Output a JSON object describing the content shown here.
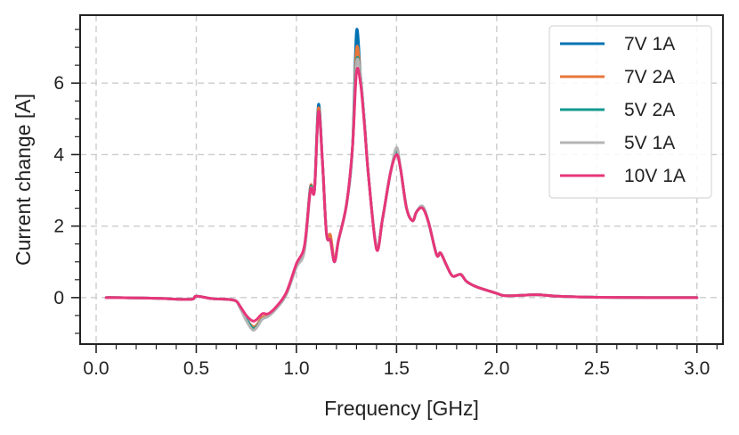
{
  "chart_data": {
    "type": "line",
    "title": "",
    "xlabel": "Frequency [GHz]",
    "ylabel": "Current change [A]",
    "xlim": [
      -0.08,
      3.13
    ],
    "ylim": [
      -1.3,
      7.9
    ],
    "xticks": [
      0.0,
      0.5,
      1.0,
      1.5,
      2.0,
      2.5,
      3.0
    ],
    "xtick_labels": [
      "0.0",
      "0.5",
      "1.0",
      "1.5",
      "2.0",
      "2.5",
      "3.0"
    ],
    "yticks": [
      0,
      2,
      4,
      6
    ],
    "ytick_labels": [
      "0",
      "2",
      "4",
      "6"
    ],
    "grid": true,
    "legend_position": "top-right",
    "series": [
      {
        "name": "7V 1A",
        "color": "#0072b2",
        "peak_scale": 1.18,
        "dip_scale": 1.0,
        "noise": 1.0,
        "points": [
          [
            0.05,
            0.0
          ],
          [
            0.1,
            0.0
          ],
          [
            0.3,
            -0.02
          ],
          [
            0.47,
            -0.05
          ],
          [
            0.5,
            0.04
          ],
          [
            0.58,
            -0.03
          ],
          [
            0.66,
            -0.05
          ],
          [
            0.7,
            -0.1
          ],
          [
            0.72,
            -0.3
          ],
          [
            0.75,
            -0.6
          ],
          [
            0.78,
            -0.8
          ],
          [
            0.8,
            -0.78
          ],
          [
            0.83,
            -0.55
          ],
          [
            0.86,
            -0.5
          ],
          [
            0.9,
            -0.3
          ],
          [
            0.95,
            0.1
          ],
          [
            1.0,
            0.9
          ],
          [
            1.04,
            1.4
          ],
          [
            1.07,
            3.1
          ],
          [
            1.09,
            3.0
          ],
          [
            1.11,
            5.4
          ],
          [
            1.13,
            3.8
          ],
          [
            1.15,
            1.8
          ],
          [
            1.17,
            1.6
          ],
          [
            1.19,
            1.0
          ],
          [
            1.21,
            1.6
          ],
          [
            1.25,
            2.6
          ],
          [
            1.28,
            4.2
          ],
          [
            1.3,
            7.45
          ],
          [
            1.32,
            6.2
          ],
          [
            1.34,
            4.9
          ],
          [
            1.36,
            3.4
          ],
          [
            1.4,
            1.4
          ],
          [
            1.43,
            2.2
          ],
          [
            1.47,
            3.5
          ],
          [
            1.5,
            4.05
          ],
          [
            1.52,
            3.6
          ],
          [
            1.55,
            2.5
          ],
          [
            1.58,
            2.15
          ],
          [
            1.6,
            2.4
          ],
          [
            1.63,
            2.55
          ],
          [
            1.66,
            2.1
          ],
          [
            1.7,
            1.2
          ],
          [
            1.72,
            1.25
          ],
          [
            1.75,
            0.9
          ],
          [
            1.78,
            0.6
          ],
          [
            1.82,
            0.65
          ],
          [
            1.85,
            0.45
          ],
          [
            1.9,
            0.3
          ],
          [
            2.0,
            0.12
          ],
          [
            2.05,
            0.05
          ],
          [
            2.2,
            0.08
          ],
          [
            2.3,
            0.04
          ],
          [
            2.5,
            0.01
          ],
          [
            2.75,
            0.0
          ],
          [
            3.0,
            0.0
          ]
        ]
      },
      {
        "name": "7V 2A",
        "color": "#e8773a",
        "peak_scale": 1.1,
        "dip_scale": 0.85,
        "noise": 0.9,
        "points": [
          [
            0.05,
            0.0
          ],
          [
            0.1,
            0.0
          ],
          [
            0.3,
            -0.02
          ],
          [
            0.47,
            -0.05
          ],
          [
            0.5,
            0.04
          ],
          [
            0.58,
            -0.03
          ],
          [
            0.66,
            -0.05
          ],
          [
            0.7,
            -0.1
          ],
          [
            0.72,
            -0.3
          ],
          [
            0.75,
            -0.6
          ],
          [
            0.78,
            -0.8
          ],
          [
            0.8,
            -0.78
          ],
          [
            0.83,
            -0.55
          ],
          [
            0.86,
            -0.5
          ],
          [
            0.9,
            -0.3
          ],
          [
            0.95,
            0.1
          ],
          [
            1.0,
            0.9
          ],
          [
            1.04,
            1.4
          ],
          [
            1.07,
            3.1
          ],
          [
            1.09,
            3.0
          ],
          [
            1.11,
            5.3
          ],
          [
            1.13,
            3.8
          ],
          [
            1.15,
            1.8
          ],
          [
            1.17,
            1.75
          ],
          [
            1.19,
            1.05
          ],
          [
            1.21,
            1.6
          ],
          [
            1.25,
            2.6
          ],
          [
            1.28,
            4.2
          ],
          [
            1.3,
            6.95
          ],
          [
            1.32,
            6.2
          ],
          [
            1.34,
            4.9
          ],
          [
            1.36,
            3.4
          ],
          [
            1.4,
            1.4
          ],
          [
            1.43,
            2.2
          ],
          [
            1.47,
            3.5
          ],
          [
            1.5,
            4.0
          ],
          [
            1.52,
            3.6
          ],
          [
            1.55,
            2.5
          ],
          [
            1.58,
            2.15
          ],
          [
            1.6,
            2.4
          ],
          [
            1.63,
            2.55
          ],
          [
            1.66,
            2.1
          ],
          [
            1.7,
            1.2
          ],
          [
            1.72,
            1.25
          ],
          [
            1.75,
            0.9
          ],
          [
            1.78,
            0.6
          ],
          [
            1.82,
            0.65
          ],
          [
            1.85,
            0.45
          ],
          [
            1.9,
            0.3
          ],
          [
            2.0,
            0.12
          ],
          [
            2.05,
            0.05
          ],
          [
            2.2,
            0.08
          ],
          [
            2.3,
            0.04
          ],
          [
            2.5,
            0.01
          ],
          [
            2.75,
            0.0
          ],
          [
            3.0,
            0.0
          ]
        ]
      },
      {
        "name": "5V 2A",
        "color": "#139a8f",
        "peak_scale": 1.05,
        "dip_scale": 1.05,
        "noise": 1.0,
        "points": [
          [
            0.05,
            0.0
          ],
          [
            0.1,
            0.0
          ],
          [
            0.3,
            -0.02
          ],
          [
            0.47,
            -0.05
          ],
          [
            0.5,
            0.04
          ],
          [
            0.58,
            -0.03
          ],
          [
            0.66,
            -0.05
          ],
          [
            0.7,
            -0.1
          ],
          [
            0.72,
            -0.3
          ],
          [
            0.75,
            -0.6
          ],
          [
            0.78,
            -0.85
          ],
          [
            0.8,
            -0.82
          ],
          [
            0.83,
            -0.6
          ],
          [
            0.86,
            -0.52
          ],
          [
            0.9,
            -0.3
          ],
          [
            0.95,
            0.1
          ],
          [
            1.0,
            0.88
          ],
          [
            1.04,
            1.35
          ],
          [
            1.07,
            3.05
          ],
          [
            1.09,
            3.0
          ],
          [
            1.11,
            5.2
          ],
          [
            1.13,
            3.8
          ],
          [
            1.15,
            1.8
          ],
          [
            1.17,
            1.6
          ],
          [
            1.19,
            1.0
          ],
          [
            1.21,
            1.6
          ],
          [
            1.25,
            2.6
          ],
          [
            1.28,
            4.2
          ],
          [
            1.3,
            6.6
          ],
          [
            1.32,
            6.2
          ],
          [
            1.34,
            4.9
          ],
          [
            1.36,
            3.4
          ],
          [
            1.4,
            1.4
          ],
          [
            1.43,
            2.2
          ],
          [
            1.47,
            3.5
          ],
          [
            1.5,
            4.1
          ],
          [
            1.52,
            3.6
          ],
          [
            1.55,
            2.5
          ],
          [
            1.58,
            2.15
          ],
          [
            1.6,
            2.4
          ],
          [
            1.63,
            2.55
          ],
          [
            1.66,
            2.1
          ],
          [
            1.7,
            1.2
          ],
          [
            1.72,
            1.25
          ],
          [
            1.75,
            0.9
          ],
          [
            1.78,
            0.6
          ],
          [
            1.82,
            0.65
          ],
          [
            1.85,
            0.45
          ],
          [
            1.9,
            0.3
          ],
          [
            2.0,
            0.12
          ],
          [
            2.05,
            0.05
          ],
          [
            2.2,
            0.08
          ],
          [
            2.3,
            0.04
          ],
          [
            2.5,
            0.01
          ],
          [
            2.75,
            0.0
          ],
          [
            3.0,
            0.0
          ]
        ]
      },
      {
        "name": "5V 1A",
        "color": "#b4b4b4",
        "peak_scale": 1.05,
        "dip_scale": 1.15,
        "noise": 1.1,
        "points": [
          [
            0.05,
            0.0
          ],
          [
            0.1,
            0.0
          ],
          [
            0.3,
            -0.02
          ],
          [
            0.47,
            -0.05
          ],
          [
            0.5,
            0.04
          ],
          [
            0.58,
            -0.03
          ],
          [
            0.66,
            -0.05
          ],
          [
            0.7,
            -0.1
          ],
          [
            0.72,
            -0.3
          ],
          [
            0.75,
            -0.65
          ],
          [
            0.78,
            -0.9
          ],
          [
            0.8,
            -0.85
          ],
          [
            0.83,
            -0.6
          ],
          [
            0.86,
            -0.52
          ],
          [
            0.9,
            -0.3
          ],
          [
            0.95,
            0.1
          ],
          [
            1.0,
            0.85
          ],
          [
            1.04,
            1.3
          ],
          [
            1.07,
            3.0
          ],
          [
            1.09,
            3.0
          ],
          [
            1.11,
            5.1
          ],
          [
            1.13,
            3.8
          ],
          [
            1.15,
            1.8
          ],
          [
            1.17,
            1.6
          ],
          [
            1.19,
            1.0
          ],
          [
            1.21,
            1.6
          ],
          [
            1.25,
            2.6
          ],
          [
            1.28,
            4.2
          ],
          [
            1.3,
            6.55
          ],
          [
            1.32,
            6.2
          ],
          [
            1.34,
            4.9
          ],
          [
            1.36,
            3.4
          ],
          [
            1.4,
            1.4
          ],
          [
            1.43,
            2.2
          ],
          [
            1.47,
            3.5
          ],
          [
            1.5,
            4.2
          ],
          [
            1.52,
            3.6
          ],
          [
            1.55,
            2.5
          ],
          [
            1.58,
            2.15
          ],
          [
            1.6,
            2.4
          ],
          [
            1.63,
            2.55
          ],
          [
            1.66,
            2.1
          ],
          [
            1.7,
            1.2
          ],
          [
            1.72,
            1.25
          ],
          [
            1.75,
            0.9
          ],
          [
            1.78,
            0.6
          ],
          [
            1.82,
            0.65
          ],
          [
            1.85,
            0.45
          ],
          [
            1.9,
            0.3
          ],
          [
            2.0,
            0.12
          ],
          [
            2.05,
            0.05
          ],
          [
            2.2,
            0.08
          ],
          [
            2.3,
            0.04
          ],
          [
            2.5,
            0.01
          ],
          [
            2.75,
            0.0
          ],
          [
            3.0,
            0.0
          ]
        ]
      },
      {
        "name": "10V 1A",
        "color": "#e8357a",
        "peak_scale": 1.0,
        "dip_scale": 0.75,
        "noise": 0.8,
        "points": [
          [
            0.05,
            0.0
          ],
          [
            0.1,
            0.0
          ],
          [
            0.3,
            -0.02
          ],
          [
            0.47,
            -0.05
          ],
          [
            0.5,
            0.04
          ],
          [
            0.58,
            -0.03
          ],
          [
            0.66,
            -0.05
          ],
          [
            0.7,
            -0.1
          ],
          [
            0.72,
            -0.25
          ],
          [
            0.75,
            -0.5
          ],
          [
            0.78,
            -0.65
          ],
          [
            0.8,
            -0.62
          ],
          [
            0.83,
            -0.45
          ],
          [
            0.86,
            -0.45
          ],
          [
            0.9,
            -0.25
          ],
          [
            0.95,
            0.15
          ],
          [
            1.0,
            0.95
          ],
          [
            1.04,
            1.45
          ],
          [
            1.07,
            3.0
          ],
          [
            1.09,
            3.0
          ],
          [
            1.11,
            5.2
          ],
          [
            1.13,
            3.8
          ],
          [
            1.15,
            1.8
          ],
          [
            1.17,
            1.6
          ],
          [
            1.19,
            1.0
          ],
          [
            1.21,
            1.6
          ],
          [
            1.25,
            2.6
          ],
          [
            1.28,
            4.2
          ],
          [
            1.3,
            6.3
          ],
          [
            1.32,
            6.0
          ],
          [
            1.34,
            4.8
          ],
          [
            1.36,
            3.4
          ],
          [
            1.4,
            1.35
          ],
          [
            1.43,
            2.2
          ],
          [
            1.47,
            3.5
          ],
          [
            1.5,
            4.0
          ],
          [
            1.52,
            3.6
          ],
          [
            1.55,
            2.5
          ],
          [
            1.58,
            2.15
          ],
          [
            1.6,
            2.4
          ],
          [
            1.63,
            2.5
          ],
          [
            1.66,
            2.1
          ],
          [
            1.7,
            1.2
          ],
          [
            1.72,
            1.25
          ],
          [
            1.75,
            0.9
          ],
          [
            1.78,
            0.6
          ],
          [
            1.82,
            0.65
          ],
          [
            1.85,
            0.45
          ],
          [
            1.9,
            0.3
          ],
          [
            2.0,
            0.12
          ],
          [
            2.05,
            0.05
          ],
          [
            2.2,
            0.08
          ],
          [
            2.3,
            0.04
          ],
          [
            2.5,
            0.01
          ],
          [
            2.75,
            0.0
          ],
          [
            3.0,
            0.0
          ]
        ]
      }
    ]
  }
}
